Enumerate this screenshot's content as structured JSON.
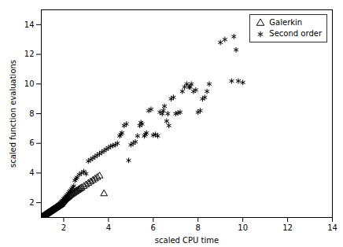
{
  "chart_data": {
    "type": "scatter",
    "xlabel": "scaled CPU time",
    "ylabel": "scaled function evaluations",
    "xlim": [
      1,
      14
    ],
    "ylim": [
      1,
      15
    ],
    "xticks": [
      2,
      4,
      6,
      8,
      10,
      12,
      14
    ],
    "yticks": [
      2,
      4,
      6,
      8,
      10,
      12,
      14
    ],
    "legend": "upper right",
    "series": [
      {
        "name": "Galerkin",
        "color": "black",
        "marker": "triangle",
        "x": [
          1.02,
          1.04,
          1.06,
          1.08,
          1.1,
          1.12,
          1.14,
          1.16,
          1.18,
          1.2,
          1.22,
          1.24,
          1.26,
          1.28,
          1.3,
          1.32,
          1.34,
          1.36,
          1.38,
          1.4,
          1.42,
          1.44,
          1.46,
          1.48,
          1.5,
          1.52,
          1.54,
          1.56,
          1.58,
          1.6,
          1.62,
          1.64,
          1.66,
          1.68,
          1.7,
          1.72,
          1.74,
          1.76,
          1.78,
          1.8,
          1.82,
          1.84,
          1.86,
          1.88,
          1.9,
          1.92,
          1.95,
          1.98,
          2.0,
          2.03,
          2.06,
          2.1,
          2.14,
          2.18,
          2.22,
          2.26,
          2.3,
          2.35,
          2.4,
          2.45,
          2.5,
          2.55,
          2.6,
          2.65,
          2.7,
          2.75,
          2.8,
          2.9,
          3.0,
          3.1,
          3.2,
          3.3,
          3.4,
          3.5,
          3.6,
          3.8
        ],
        "values": [
          1.02,
          1.04,
          1.06,
          1.08,
          1.1,
          1.12,
          1.14,
          1.16,
          1.18,
          1.2,
          1.22,
          1.24,
          1.26,
          1.28,
          1.3,
          1.32,
          1.34,
          1.36,
          1.38,
          1.4,
          1.42,
          1.44,
          1.46,
          1.48,
          1.5,
          1.52,
          1.54,
          1.56,
          1.58,
          1.6,
          1.62,
          1.64,
          1.66,
          1.68,
          1.7,
          1.72,
          1.74,
          1.76,
          1.78,
          1.8,
          1.82,
          1.84,
          1.86,
          1.88,
          1.9,
          1.95,
          2.0,
          2.05,
          2.1,
          2.15,
          2.2,
          2.25,
          2.3,
          2.35,
          2.4,
          2.45,
          2.5,
          2.55,
          2.6,
          2.65,
          2.7,
          2.75,
          2.8,
          2.85,
          2.9,
          2.95,
          3.0,
          3.1,
          3.2,
          3.3,
          3.4,
          3.5,
          3.6,
          3.7,
          3.8,
          2.6
        ]
      },
      {
        "name": "Second order",
        "color": "black",
        "marker": "asterisk",
        "x": [
          1.02,
          1.05,
          1.08,
          1.11,
          1.14,
          1.17,
          1.2,
          1.23,
          1.26,
          1.3,
          1.34,
          1.38,
          1.42,
          1.46,
          1.5,
          1.54,
          1.58,
          1.62,
          1.66,
          1.7,
          1.74,
          1.78,
          1.82,
          1.86,
          1.9,
          1.95,
          2.0,
          2.05,
          2.1,
          2.15,
          2.2,
          2.25,
          2.3,
          2.35,
          2.4,
          2.45,
          2.5,
          2.55,
          2.6,
          2.7,
          2.8,
          2.9,
          3.0,
          3.1,
          3.2,
          3.3,
          3.4,
          3.5,
          3.6,
          3.7,
          3.8,
          3.9,
          4.0,
          4.1,
          4.2,
          4.3,
          4.4,
          4.5,
          4.55,
          4.6,
          4.7,
          4.8,
          4.9,
          5.0,
          5.1,
          5.2,
          5.3,
          5.4,
          5.45,
          5.5,
          5.6,
          5.65,
          5.7,
          5.8,
          5.9,
          6.0,
          6.1,
          6.2,
          6.3,
          6.4,
          6.45,
          6.5,
          6.6,
          6.65,
          6.7,
          6.8,
          6.9,
          7.0,
          7.1,
          7.2,
          7.3,
          7.4,
          7.5,
          7.6,
          7.65,
          7.7,
          7.8,
          7.9,
          8.0,
          8.1,
          8.2,
          8.3,
          8.4,
          8.5,
          9.0,
          9.2,
          9.5,
          9.6,
          9.7,
          9.8,
          10.0
        ],
        "values": [
          1.02,
          1.05,
          1.08,
          1.11,
          1.14,
          1.17,
          1.2,
          1.23,
          1.26,
          1.3,
          1.34,
          1.38,
          1.42,
          1.46,
          1.5,
          1.54,
          1.58,
          1.62,
          1.68,
          1.74,
          1.8,
          1.86,
          1.92,
          2.0,
          2.08,
          2.16,
          2.25,
          2.34,
          2.43,
          2.52,
          2.62,
          2.72,
          2.82,
          2.92,
          3.02,
          3.12,
          3.5,
          3.6,
          3.7,
          3.9,
          4.0,
          4.1,
          3.95,
          4.8,
          4.9,
          5.0,
          5.1,
          5.2,
          5.3,
          5.4,
          5.5,
          5.6,
          5.7,
          5.8,
          5.85,
          5.9,
          6.0,
          6.5,
          6.6,
          6.7,
          7.2,
          7.3,
          4.85,
          5.9,
          6.0,
          6.1,
          6.5,
          7.2,
          7.4,
          7.3,
          6.5,
          6.6,
          6.7,
          8.2,
          8.3,
          6.55,
          6.6,
          6.5,
          8.1,
          8.0,
          8.2,
          8.5,
          7.5,
          8.0,
          7.2,
          9.0,
          9.1,
          8.0,
          8.05,
          8.1,
          9.5,
          9.8,
          10.0,
          9.8,
          9.8,
          10.0,
          9.5,
          9.6,
          8.1,
          8.2,
          9.0,
          9.1,
          9.5,
          10.0,
          12.8,
          13.0,
          10.2,
          13.2,
          12.3,
          10.2,
          10.1
        ]
      }
    ]
  }
}
